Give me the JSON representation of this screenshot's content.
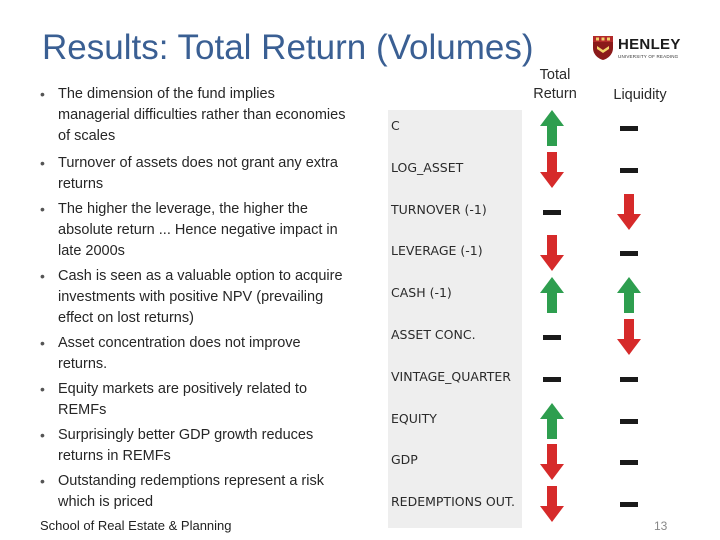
{
  "slide": {
    "title": "Results: Total Return (Volumes)",
    "footer": "School of Real Estate & Planning",
    "page_number": "13"
  },
  "logo": {
    "name": "HENLEY",
    "subtitle": "UNIVERSITY OF READING",
    "color": "#8b1a1a"
  },
  "bullets": [
    "The dimension of the fund implies managerial difficulties rather than economies of scales",
    "Turnover of assets does not grant any extra returns",
    "The higher the leverage, the higher the absolute return ... Hence negative impact in late 2000s",
    "Cash is seen as a valuable option to acquire investments with positive NPV (prevailing effect on lost returns)",
    "Asset concentration does not improve returns.",
    "Equity markets are positively related to REMFs",
    "Surprisingly better GDP growth reduces returns in REMFs",
    "Outstanding redemptions represent a risk which is priced"
  ],
  "table": {
    "col_total_return": "Total\nReturn",
    "col_liquidity": "Liquidity",
    "colors": {
      "up": "#2e9e4f",
      "down": "#d62a2a",
      "neutral": "#1a1a1a"
    },
    "rows": [
      {
        "label": "C",
        "total_return": "up",
        "liquidity": "neutral"
      },
      {
        "label": "LOG_ASSET",
        "total_return": "down",
        "liquidity": "neutral"
      },
      {
        "label": "TURNOVER (-1)",
        "total_return": "neutral",
        "liquidity": "down"
      },
      {
        "label": "LEVERAGE (-1)",
        "total_return": "down",
        "liquidity": "neutral"
      },
      {
        "label": "CASH (-1)",
        "total_return": "up",
        "liquidity": "up"
      },
      {
        "label": "ASSET CONC.",
        "total_return": "neutral",
        "liquidity": "down"
      },
      {
        "label": "VINTAGE_QUARTER",
        "total_return": "neutral",
        "liquidity": "neutral"
      },
      {
        "label": "EQUITY",
        "total_return": "up",
        "liquidity": "neutral"
      },
      {
        "label": "GDP",
        "total_return": "down",
        "liquidity": "neutral"
      },
      {
        "label": "REDEMPTIONS OUT.",
        "total_return": "down",
        "liquidity": "neutral"
      }
    ]
  }
}
